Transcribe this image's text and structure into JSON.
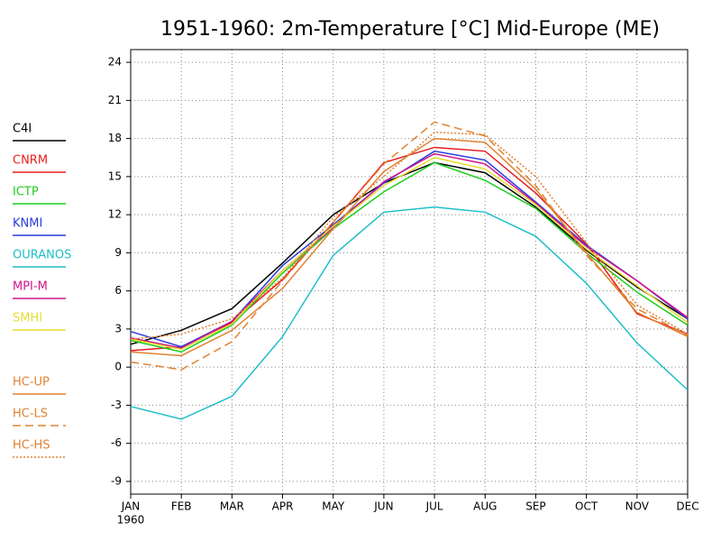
{
  "chart_data": {
    "type": "line",
    "title": "1951-1960: 2m-Temperature [°C] Mid-Europe (ME)",
    "categories": [
      "JAN",
      "FEB",
      "MAR",
      "APR",
      "MAY",
      "JUN",
      "JUL",
      "AUG",
      "SEP",
      "OCT",
      "NOV",
      "DEC"
    ],
    "x_sublabel": "1960",
    "ylim": [
      -10,
      25
    ],
    "yticks": [
      -9,
      -6,
      -3,
      0,
      3,
      6,
      9,
      12,
      15,
      18,
      21,
      24
    ],
    "grid": true,
    "legend": "left",
    "series": [
      {
        "name": "C4I",
        "color": "#000000",
        "dash": "solid",
        "values": [
          1.8,
          2.9,
          4.6,
          8.2,
          12.0,
          14.5,
          16.1,
          15.3,
          12.6,
          9.2,
          6.3,
          3.8
        ]
      },
      {
        "name": "CNRM",
        "color": "#e61e1e",
        "dash": "solid",
        "values": [
          1.3,
          1.6,
          3.5,
          6.9,
          11.4,
          16.1,
          17.3,
          17.0,
          13.7,
          9.7,
          4.2,
          2.6
        ]
      },
      {
        "name": "ICTP",
        "color": "#1ecc1e",
        "dash": "solid",
        "values": [
          2.1,
          1.2,
          3.3,
          7.4,
          10.9,
          13.8,
          16.1,
          14.7,
          12.5,
          9.0,
          5.9,
          3.3
        ]
      },
      {
        "name": "KNMI",
        "color": "#2a3cdc",
        "dash": "solid",
        "values": [
          2.8,
          1.6,
          3.6,
          8.0,
          11.2,
          14.5,
          17.0,
          16.3,
          13.0,
          9.6,
          6.8,
          3.8
        ]
      },
      {
        "name": "OURANOS",
        "color": "#1ebec8",
        "dash": "solid",
        "values": [
          -3.1,
          -4.1,
          -2.3,
          2.4,
          8.8,
          12.2,
          12.6,
          12.2,
          10.3,
          6.6,
          1.9,
          -1.8
        ]
      },
      {
        "name": "MPI-M",
        "color": "#d2148c",
        "dash": "solid",
        "values": [
          2.3,
          1.5,
          3.6,
          7.6,
          11.0,
          14.6,
          16.8,
          16.0,
          12.9,
          9.5,
          6.8,
          3.9
        ]
      },
      {
        "name": "SMHI",
        "color": "#e6dc32",
        "dash": "solid",
        "values": [
          2.2,
          1.4,
          3.4,
          7.6,
          11.1,
          14.3,
          16.5,
          15.6,
          12.8,
          9.3,
          6.4,
          3.5
        ]
      },
      {
        "name": "HC-UP",
        "color": "#e08232",
        "dash": "solid",
        "values": [
          1.2,
          0.9,
          2.9,
          6.2,
          10.9,
          15.4,
          18.0,
          17.7,
          14.0,
          9.0,
          4.3,
          2.4
        ]
      },
      {
        "name": "HC-LS",
        "color": "#e08232",
        "dash": "dashed",
        "values": [
          0.4,
          -0.2,
          2.0,
          6.8,
          11.4,
          16.0,
          19.3,
          18.2,
          14.3,
          8.8,
          4.6,
          2.5
        ]
      },
      {
        "name": "HC-HS",
        "color": "#e08232",
        "dash": "dotted",
        "values": [
          2.2,
          2.6,
          3.8,
          7.0,
          11.8,
          15.0,
          18.5,
          18.3,
          15.0,
          9.8,
          4.9,
          2.6
        ]
      }
    ]
  }
}
